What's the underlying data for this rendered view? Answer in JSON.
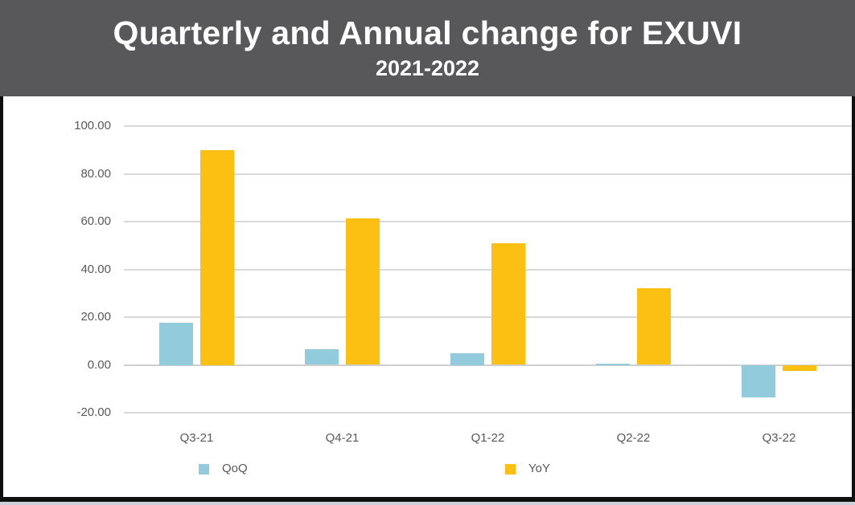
{
  "header": {
    "title": "Quarterly and Annual change for EXUVI",
    "subtitle": "2021-2022"
  },
  "chart_data": {
    "type": "bar",
    "title": "Quarterly and Annual change for EXUVI",
    "subtitle": "2021-2022",
    "categories": [
      "Q3-21",
      "Q4-21",
      "Q1-22",
      "Q2-22",
      "Q3-22"
    ],
    "series": [
      {
        "name": "QoQ",
        "color": "#92CBDC",
        "values": [
          17.5,
          6.5,
          5.0,
          0.5,
          -13.5
        ]
      },
      {
        "name": "YoY",
        "color": "#FBC011",
        "values": [
          90.0,
          61.5,
          51.0,
          32.0,
          -2.5
        ]
      }
    ],
    "xlabel": "",
    "ylabel": "",
    "ylim": [
      -20,
      100
    ],
    "yticks": [
      100,
      80,
      60,
      40,
      20,
      0,
      -20
    ],
    "ytick_labels": [
      "100.00",
      "80.00",
      "60.00",
      "40.00",
      "20.00",
      "0.00",
      "-20.00"
    ],
    "grid": "horizontal",
    "legend_position": "bottom"
  },
  "colors": {
    "header_bg": "#58585A",
    "title_text": "#FFFFFF",
    "axis_text": "#595959",
    "gridline": "#D9D9D9",
    "qoq": "#92CBDC",
    "yoy": "#FBC011",
    "frame_border": "#0F0F0F"
  }
}
